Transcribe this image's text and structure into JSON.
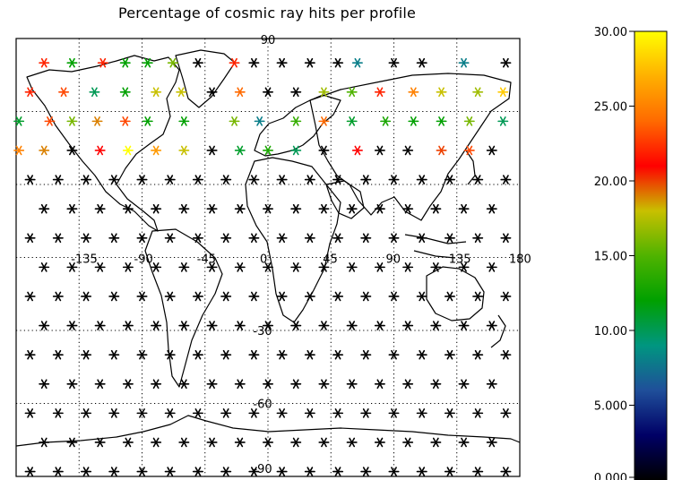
{
  "figure": {
    "title": "Percentage of cosmic ray hits per profile"
  },
  "map": {
    "projection": "cylindrical",
    "lon_range": [
      -180,
      180
    ],
    "lat_range": [
      -90,
      90
    ],
    "gridlines": "dotted",
    "lon_labels": [
      "-135",
      "-90",
      "-45",
      "0",
      "45",
      "90",
      "135",
      "180"
    ],
    "lat_labels": [
      "90",
      "60",
      "30",
      "0",
      "-30",
      "-60",
      "-90"
    ],
    "shown_lat_labels": [
      "-30",
      "-60",
      "-90"
    ],
    "outline_top_label": "90"
  },
  "colorbar": {
    "min": 0,
    "max": 30,
    "tick_labels": [
      "0.000",
      "5.000",
      "10.00",
      "15.00",
      "20.00",
      "25.00",
      "30.00"
    ],
    "gradient": [
      "#000000",
      "#000066",
      "#1f4f9a",
      "#009680",
      "#00a000",
      "#4fb300",
      "#c8c000",
      "#ff0000",
      "#ff6a00",
      "#ffb000",
      "#ffff00"
    ]
  },
  "chart_data": {
    "type": "scatter",
    "title": "Percentage of cosmic ray hits per profile",
    "x_unit": "longitude",
    "y_unit": "latitude",
    "color_scale": [
      0,
      30
    ],
    "colored_points": [
      {
        "lon": -160,
        "lat": 80,
        "value": 22
      },
      {
        "lon": -140,
        "lat": 80,
        "value": 12
      },
      {
        "lon": -118,
        "lat": 80,
        "value": 22
      },
      {
        "lon": -102,
        "lat": 80,
        "value": 12
      },
      {
        "lon": -86,
        "lat": 80,
        "value": 12
      },
      {
        "lon": -68,
        "lat": 80,
        "value": 16
      },
      {
        "lon": -24,
        "lat": 80,
        "value": 22
      },
      {
        "lon": 64,
        "lat": 80,
        "value": 8
      },
      {
        "lon": 140,
        "lat": 80,
        "value": 8
      },
      {
        "lon": -170,
        "lat": 68,
        "value": 22
      },
      {
        "lon": -146,
        "lat": 68,
        "value": 23
      },
      {
        "lon": -124,
        "lat": 68,
        "value": 10
      },
      {
        "lon": -102,
        "lat": 68,
        "value": 12
      },
      {
        "lon": -80,
        "lat": 68,
        "value": 18
      },
      {
        "lon": -62,
        "lat": 68,
        "value": 18
      },
      {
        "lon": -20,
        "lat": 68,
        "value": 24
      },
      {
        "lon": 40,
        "lat": 68,
        "value": 17
      },
      {
        "lon": 60,
        "lat": 68,
        "value": 15
      },
      {
        "lon": 80,
        "lat": 68,
        "value": 22
      },
      {
        "lon": 104,
        "lat": 68,
        "value": 25
      },
      {
        "lon": 124,
        "lat": 68,
        "value": 18
      },
      {
        "lon": 150,
        "lat": 68,
        "value": 17
      },
      {
        "lon": 168,
        "lat": 68,
        "value": 28
      },
      {
        "lon": -178,
        "lat": 56,
        "value": 11
      },
      {
        "lon": -156,
        "lat": 56,
        "value": 23
      },
      {
        "lon": -140,
        "lat": 56,
        "value": 16
      },
      {
        "lon": -122,
        "lat": 56,
        "value": 19
      },
      {
        "lon": -102,
        "lat": 56,
        "value": 23
      },
      {
        "lon": -86,
        "lat": 56,
        "value": 12
      },
      {
        "lon": -60,
        "lat": 56,
        "value": 12
      },
      {
        "lon": -24,
        "lat": 56,
        "value": 16
      },
      {
        "lon": -6,
        "lat": 56,
        "value": 8
      },
      {
        "lon": 20,
        "lat": 56,
        "value": 14
      },
      {
        "lon": 40,
        "lat": 56,
        "value": 24
      },
      {
        "lon": 60,
        "lat": 56,
        "value": 11
      },
      {
        "lon": 84,
        "lat": 56,
        "value": 13
      },
      {
        "lon": 104,
        "lat": 56,
        "value": 12
      },
      {
        "lon": 124,
        "lat": 56,
        "value": 12
      },
      {
        "lon": 144,
        "lat": 56,
        "value": 16
      },
      {
        "lon": 168,
        "lat": 56,
        "value": 10
      },
      {
        "lon": -178,
        "lat": 44,
        "value": 25
      },
      {
        "lon": -160,
        "lat": 44,
        "value": 19
      },
      {
        "lon": -120,
        "lat": 44,
        "value": 21
      },
      {
        "lon": -100,
        "lat": 44,
        "value": 30
      },
      {
        "lon": -80,
        "lat": 44,
        "value": 26
      },
      {
        "lon": -60,
        "lat": 44,
        "value": 18
      },
      {
        "lon": -20,
        "lat": 44,
        "value": 11
      },
      {
        "lon": 0,
        "lat": 44,
        "value": 13
      },
      {
        "lon": 20,
        "lat": 44,
        "value": 10
      },
      {
        "lon": 64,
        "lat": 44,
        "value": 21
      },
      {
        "lon": 124,
        "lat": 44,
        "value": 20
      },
      {
        "lon": 144,
        "lat": 44,
        "value": 23
      }
    ],
    "black_points": "regular 20° x 12° grid of black asterisks (0% hits) over the remaining latitudes (~32°N to ~88°S)"
  }
}
